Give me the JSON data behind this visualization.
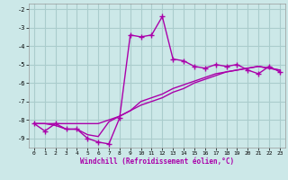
{
  "background_color": "#cce8e8",
  "grid_color": "#aacccc",
  "line_color": "#aa00aa",
  "xlabel": "Windchill (Refroidissement éolien,°C)",
  "xlim": [
    -0.5,
    23.5
  ],
  "ylim": [
    -9.5,
    -1.7
  ],
  "xticks": [
    0,
    1,
    2,
    3,
    4,
    5,
    6,
    7,
    8,
    9,
    10,
    11,
    12,
    13,
    14,
    15,
    16,
    17,
    18,
    19,
    20,
    21,
    22,
    23
  ],
  "yticks": [
    -2,
    -3,
    -4,
    -5,
    -6,
    -7,
    -8,
    -9
  ],
  "line1_x": [
    0,
    1,
    2,
    3,
    4,
    5,
    6,
    7,
    8,
    9,
    10,
    11,
    12,
    13,
    14,
    15,
    16,
    17,
    18,
    19,
    20,
    21,
    22,
    23
  ],
  "line1_y": [
    -8.2,
    -8.6,
    -8.2,
    -8.5,
    -8.5,
    -9.0,
    -9.2,
    -9.3,
    -7.9,
    -3.4,
    -3.5,
    -3.4,
    -2.4,
    -4.7,
    -4.8,
    -5.1,
    -5.2,
    -5.0,
    -5.1,
    -5.0,
    -5.3,
    -5.5,
    -5.1,
    -5.4
  ],
  "line2_x": [
    0,
    1,
    2,
    3,
    4,
    5,
    6,
    7,
    8,
    9,
    10,
    11,
    12,
    13,
    14,
    15,
    16,
    17,
    18,
    19,
    20,
    21,
    22,
    23
  ],
  "line2_y": [
    -8.2,
    -8.2,
    -8.3,
    -8.5,
    -8.5,
    -8.8,
    -8.9,
    -8.1,
    -7.8,
    -7.5,
    -7.0,
    -6.8,
    -6.6,
    -6.3,
    -6.1,
    -5.9,
    -5.7,
    -5.5,
    -5.4,
    -5.3,
    -5.2,
    -5.1,
    -5.2,
    -5.3
  ],
  "line3_x": [
    0,
    1,
    2,
    3,
    4,
    5,
    6,
    7,
    8,
    9,
    10,
    11,
    12,
    13,
    14,
    15,
    16,
    17,
    18,
    19,
    20,
    21,
    22,
    23
  ],
  "line3_y": [
    -8.2,
    -8.2,
    -8.2,
    -8.2,
    -8.2,
    -8.2,
    -8.2,
    -8.0,
    -7.8,
    -7.5,
    -7.2,
    -7.0,
    -6.8,
    -6.5,
    -6.3,
    -6.0,
    -5.8,
    -5.6,
    -5.4,
    -5.3,
    -5.2,
    -5.1,
    -5.2,
    -5.3
  ]
}
